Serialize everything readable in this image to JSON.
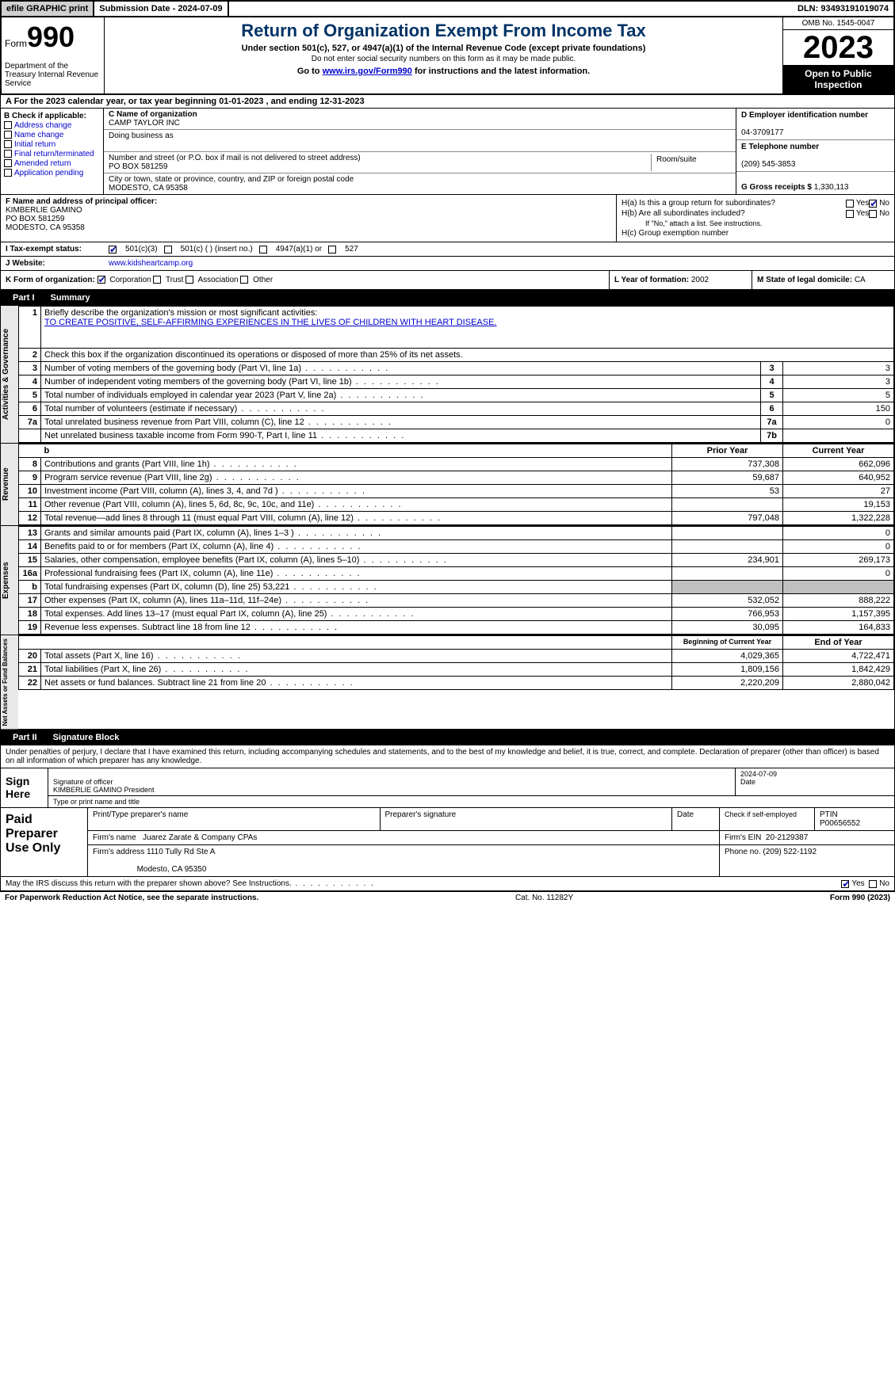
{
  "top": {
    "efile": "efile GRAPHIC print",
    "submission": "Submission Date - 2024-07-09",
    "dln": "DLN: 93493191019074"
  },
  "header": {
    "form_word": "Form",
    "form_num": "990",
    "dept": "Department of the Treasury Internal Revenue Service",
    "title": "Return of Organization Exempt From Income Tax",
    "subtitle": "Under section 501(c), 527, or 4947(a)(1) of the Internal Revenue Code (except private foundations)",
    "subtitle2": "Do not enter social security numbers on this form as it may be made public.",
    "goto_pre": "Go to ",
    "goto_link": "www.irs.gov/Form990",
    "goto_post": " for instructions and the latest information.",
    "omb": "OMB No. 1545-0047",
    "year": "2023",
    "open": "Open to Public Inspection"
  },
  "row_a": "A For the 2023 calendar year, or tax year beginning 01-01-2023    , and ending 12-31-2023",
  "col_b": {
    "header": "B Check if applicable:",
    "items": [
      "Address change",
      "Name change",
      "Initial return",
      "Final return/terminated",
      "Amended return",
      "Application pending"
    ]
  },
  "col_c": {
    "name_lbl": "C Name of organization",
    "name": "CAMP TAYLOR INC",
    "dba_lbl": "Doing business as",
    "addr_lbl": "Number and street (or P.O. box if mail is not delivered to street address)",
    "addr": "PO BOX 581259",
    "room_lbl": "Room/suite",
    "city_lbl": "City or town, state or province, country, and ZIP or foreign postal code",
    "city": "MODESTO, CA  95358"
  },
  "col_d": {
    "ein_lbl": "D Employer identification number",
    "ein": "04-3709177",
    "phone_lbl": "E Telephone number",
    "phone": "(209) 545-3853",
    "gross_lbl": "G Gross receipts $",
    "gross": "1,330,113"
  },
  "col_f": {
    "lbl": "F  Name and address of principal officer:",
    "name": "KIMBERLIE GAMINO",
    "addr1": "PO BOX 581259",
    "addr2": "MODESTO, CA  95358"
  },
  "col_h": {
    "ha": "H(a)  Is this a group return for subordinates?",
    "hb": "H(b)  Are all subordinates included?",
    "hb_note": "If \"No,\" attach a list. See instructions.",
    "hc": "H(c)  Group exemption number",
    "yes": "Yes",
    "no": "No"
  },
  "tax_status": {
    "lbl": "I    Tax-exempt status:",
    "opt1": "501(c)(3)",
    "opt2": "501(c) (  ) (insert no.)",
    "opt3": "4947(a)(1) or",
    "opt4": "527"
  },
  "website": {
    "lbl": "J   Website:",
    "val": "www.kidsheartcamp.org"
  },
  "row_k": {
    "lbl": "K Form of organization:",
    "corp": "Corporation",
    "trust": "Trust",
    "assoc": "Association",
    "other": "Other",
    "year_lbl": "L Year of formation:",
    "year": "2002",
    "state_lbl": "M State of legal domicile:",
    "state": "CA"
  },
  "part1": {
    "header_label": "Part I",
    "header_title": "Summary",
    "side_labels": {
      "gov": "Activities & Governance",
      "rev": "Revenue",
      "exp": "Expenses",
      "net": "Net Assets or Fund Balances"
    },
    "line1_lbl": "Briefly describe the organization's mission or most significant activities:",
    "line1_val": "TO CREATE POSITIVE, SELF-AFFIRMING EXPERIENCES IN THE LIVES OF CHILDREN WITH HEART DISEASE.",
    "line2": "Check this box      if the organization discontinued its operations or disposed of more than 25% of its net assets.",
    "lines_gov": [
      {
        "n": "3",
        "lbl": "Number of voting members of the governing body (Part VI, line 1a)",
        "box": "3",
        "val": "3"
      },
      {
        "n": "4",
        "lbl": "Number of independent voting members of the governing body (Part VI, line 1b)",
        "box": "4",
        "val": "3"
      },
      {
        "n": "5",
        "lbl": "Total number of individuals employed in calendar year 2023 (Part V, line 2a)",
        "box": "5",
        "val": "5"
      },
      {
        "n": "6",
        "lbl": "Total number of volunteers (estimate if necessary)",
        "box": "6",
        "val": "150"
      },
      {
        "n": "7a",
        "lbl": "Total unrelated business revenue from Part VIII, column (C), line 12",
        "box": "7a",
        "val": "0"
      },
      {
        "n": "",
        "lbl": "Net unrelated business taxable income from Form 990-T, Part I, line 11",
        "box": "7b",
        "val": ""
      }
    ],
    "hdr_b": "b",
    "hdr_prior": "Prior Year",
    "hdr_curr": "Current Year",
    "lines_rev": [
      {
        "n": "8",
        "lbl": "Contributions and grants (Part VIII, line 1h)",
        "prior": "737,308",
        "curr": "662,096"
      },
      {
        "n": "9",
        "lbl": "Program service revenue (Part VIII, line 2g)",
        "prior": "59,687",
        "curr": "640,952"
      },
      {
        "n": "10",
        "lbl": "Investment income (Part VIII, column (A), lines 3, 4, and 7d )",
        "prior": "53",
        "curr": "27"
      },
      {
        "n": "11",
        "lbl": "Other revenue (Part VIII, column (A), lines 5, 6d, 8c, 9c, 10c, and 11e)",
        "prior": "",
        "curr": "19,153"
      },
      {
        "n": "12",
        "lbl": "Total revenue—add lines 8 through 11 (must equal Part VIII, column (A), line 12)",
        "prior": "797,048",
        "curr": "1,322,228"
      }
    ],
    "lines_exp": [
      {
        "n": "13",
        "lbl": "Grants and similar amounts paid (Part IX, column (A), lines 1–3 )",
        "prior": "",
        "curr": "0"
      },
      {
        "n": "14",
        "lbl": "Benefits paid to or for members (Part IX, column (A), line 4)",
        "prior": "",
        "curr": "0"
      },
      {
        "n": "15",
        "lbl": "Salaries, other compensation, employee benefits (Part IX, column (A), lines 5–10)",
        "prior": "234,901",
        "curr": "269,173"
      },
      {
        "n": "16a",
        "lbl": "Professional fundraising fees (Part IX, column (A), line 11e)",
        "prior": "",
        "curr": "0"
      },
      {
        "n": "b",
        "lbl": "Total fundraising expenses (Part IX, column (D), line 25) 53,221",
        "prior": "SHADE",
        "curr": "SHADE"
      },
      {
        "n": "17",
        "lbl": "Other expenses (Part IX, column (A), lines 11a–11d, 11f–24e)",
        "prior": "532,052",
        "curr": "888,222"
      },
      {
        "n": "18",
        "lbl": "Total expenses. Add lines 13–17 (must equal Part IX, column (A), line 25)",
        "prior": "766,953",
        "curr": "1,157,395"
      },
      {
        "n": "19",
        "lbl": "Revenue less expenses. Subtract line 18 from line 12",
        "prior": "30,095",
        "curr": "164,833"
      }
    ],
    "hdr_begin": "Beginning of Current Year",
    "hdr_end": "End of Year",
    "lines_net": [
      {
        "n": "20",
        "lbl": "Total assets (Part X, line 16)",
        "prior": "4,029,365",
        "curr": "4,722,471"
      },
      {
        "n": "21",
        "lbl": "Total liabilities (Part X, line 26)",
        "prior": "1,809,156",
        "curr": "1,842,429"
      },
      {
        "n": "22",
        "lbl": "Net assets or fund balances. Subtract line 21 from line 20",
        "prior": "2,220,209",
        "curr": "2,880,042"
      }
    ]
  },
  "part2": {
    "header_label": "Part II",
    "header_title": "Signature Block",
    "text": "Under penalties of perjury, I declare that I have examined this return, including accompanying schedules and statements, and to the best of my knowledge and belief, it is true, correct, and complete. Declaration of preparer (other than officer) is based on all information of which preparer has any knowledge."
  },
  "sign": {
    "here": "Sign Here",
    "sig_lbl": "Signature of officer",
    "name": "KIMBERLIE GAMINO  President",
    "type_lbl": "Type or print name and title",
    "date_lbl": "Date",
    "date": "2024-07-09"
  },
  "preparer": {
    "title": "Paid Preparer Use Only",
    "print_lbl": "Print/Type preparer's name",
    "sig_lbl": "Preparer's signature",
    "date_lbl": "Date",
    "self_lbl": "Check       if self-employed",
    "ptin_lbl": "PTIN",
    "ptin": "P00656552",
    "firm_name_lbl": "Firm's name",
    "firm_name": "Juarez Zarate & Company CPAs",
    "firm_ein_lbl": "Firm's EIN",
    "firm_ein": "20-2129387",
    "firm_addr_lbl": "Firm's address",
    "firm_addr1": "1110 Tully Rd Ste A",
    "firm_addr2": "Modesto, CA  95350",
    "phone_lbl": "Phone no.",
    "phone": "(209) 522-1192"
  },
  "may_irs": {
    "text": "May the IRS discuss this return with the preparer shown above? See Instructions.",
    "yes": "Yes",
    "no": "No"
  },
  "footer": {
    "left": "For Paperwork Reduction Act Notice, see the separate instructions.",
    "mid": "Cat. No. 11282Y",
    "right_pre": "Form ",
    "right_form": "990",
    "right_post": " (2023)"
  }
}
